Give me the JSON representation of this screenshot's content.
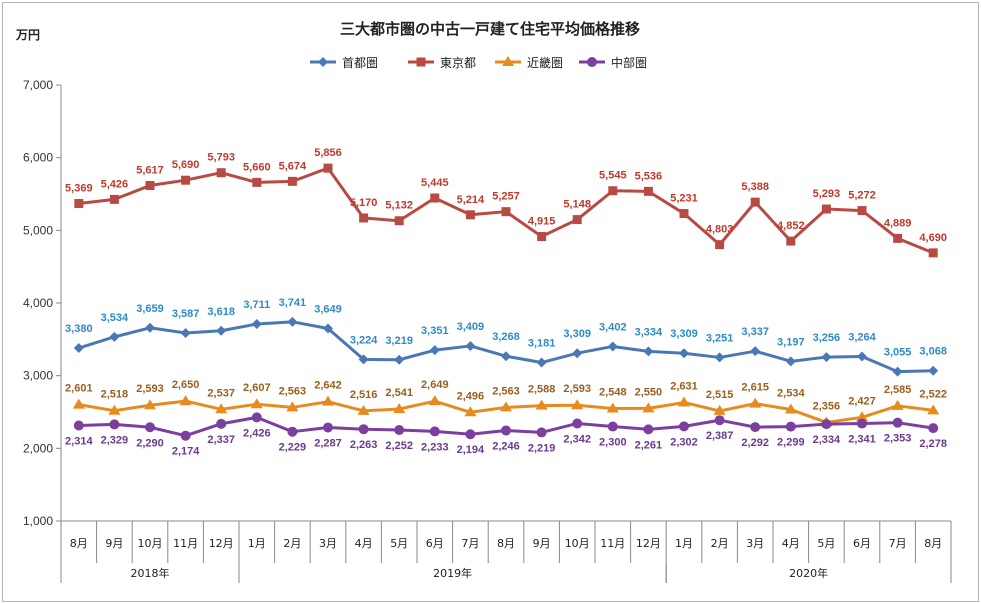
{
  "chart_data": {
    "type": "line",
    "title": "三大都市圏の中古一戸建て住宅平均価格推移",
    "ylabel": "万円",
    "ylim": [
      1000,
      7000
    ],
    "yticks": [
      "1,000",
      "2,000",
      "3,000",
      "4,000",
      "5,000",
      "6,000",
      "7,000"
    ],
    "ytick_values": [
      1000,
      2000,
      3000,
      4000,
      5000,
      6000,
      7000
    ],
    "categories": [
      "8月",
      "9月",
      "10月",
      "11月",
      "12月",
      "1月",
      "2月",
      "3月",
      "4月",
      "5月",
      "6月",
      "7月",
      "8月",
      "9月",
      "10月",
      "11月",
      "12月",
      "1月",
      "2月",
      "3月",
      "4月",
      "5月",
      "6月",
      "7月",
      "8月"
    ],
    "years": [
      {
        "label": "2018年",
        "start": 0,
        "end": 4
      },
      {
        "label": "2019年",
        "start": 5,
        "end": 16
      },
      {
        "label": "2020年",
        "start": 17,
        "end": 24
      }
    ],
    "legend_position": "top-center",
    "grid": false,
    "series": [
      {
        "name": "首都圏",
        "color": "#4a78b5",
        "label_color": "#2e8bc8",
        "marker": "diamond",
        "values": [
          3380,
          3534,
          3659,
          3587,
          3618,
          3711,
          3741,
          3649,
          3224,
          3219,
          3351,
          3409,
          3268,
          3181,
          3309,
          3402,
          3334,
          3309,
          3251,
          3337,
          3197,
          3256,
          3264,
          3055,
          3068
        ],
        "labels": [
          "3,380",
          "3,534",
          "3,659",
          "3,587",
          "3,618",
          "3,711",
          "3,741",
          "3,649",
          "3,224",
          "3,219",
          "3,351",
          "3,409",
          "3,268",
          "3,181",
          "3,309",
          "3,402",
          "3,334",
          "3,309",
          "3,251",
          "3,337",
          "3,197",
          "3,256",
          "3,264",
          "3,055",
          "3,068"
        ]
      },
      {
        "name": "東京都",
        "color": "#b84a44",
        "label_color": "#c0392b",
        "marker": "square",
        "values": [
          5369,
          5426,
          5617,
          5690,
          5793,
          5660,
          5674,
          5856,
          5170,
          5132,
          5445,
          5214,
          5257,
          4915,
          5148,
          5545,
          5536,
          5231,
          4803,
          5388,
          4852,
          5293,
          5272,
          4889,
          4690
        ],
        "labels": [
          "5,369",
          "5,426",
          "5,617",
          "5,690",
          "5,793",
          "5,660",
          "5,674",
          "5,856",
          "5,170",
          "5,132",
          "5,445",
          "5,214",
          "5,257",
          "4,915",
          "5,148",
          "5,545",
          "5,536",
          "5,231",
          "4,803",
          "5,388",
          "4,852",
          "5,293",
          "5,272",
          "4,889",
          "4,690"
        ]
      },
      {
        "name": "近畿圏",
        "color": "#e88b1f",
        "label_color": "#9a5f1f",
        "marker": "triangle",
        "values": [
          2601,
          2518,
          2593,
          2650,
          2537,
          2607,
          2563,
          2642,
          2516,
          2541,
          2649,
          2496,
          2563,
          2588,
          2593,
          2548,
          2550,
          2631,
          2515,
          2615,
          2534,
          2356,
          2427,
          2585,
          2522
        ],
        "labels": [
          "2,601",
          "2,518",
          "2,593",
          "2,650",
          "2,537",
          "2,607",
          "2,563",
          "2,642",
          "2,516",
          "2,541",
          "2,649",
          "2,496",
          "2,563",
          "2,588",
          "2,593",
          "2,548",
          "2,550",
          "2,631",
          "2,515",
          "2,615",
          "2,534",
          "2,356",
          "2,427",
          "2,585",
          "2,522"
        ]
      },
      {
        "name": "中部圏",
        "color": "#7b3f9e",
        "label_color": "#6b3a8c",
        "marker": "circle",
        "values": [
          2314,
          2329,
          2290,
          2174,
          2337,
          2426,
          2229,
          2287,
          2263,
          2252,
          2233,
          2194,
          2246,
          2219,
          2342,
          2300,
          2261,
          2302,
          2387,
          2292,
          2299,
          2334,
          2341,
          2353,
          2278
        ],
        "labels": [
          "2,314",
          "2,329",
          "2,290",
          "2,174",
          "2,337",
          "2,426",
          "2,229",
          "2,287",
          "2,263",
          "2,252",
          "2,233",
          "2,194",
          "2,246",
          "2,219",
          "2,342",
          "2,300",
          "2,261",
          "2,302",
          "2,387",
          "2,292",
          "2,299",
          "2,334",
          "2,341",
          "2,353",
          "2,278"
        ]
      }
    ]
  }
}
